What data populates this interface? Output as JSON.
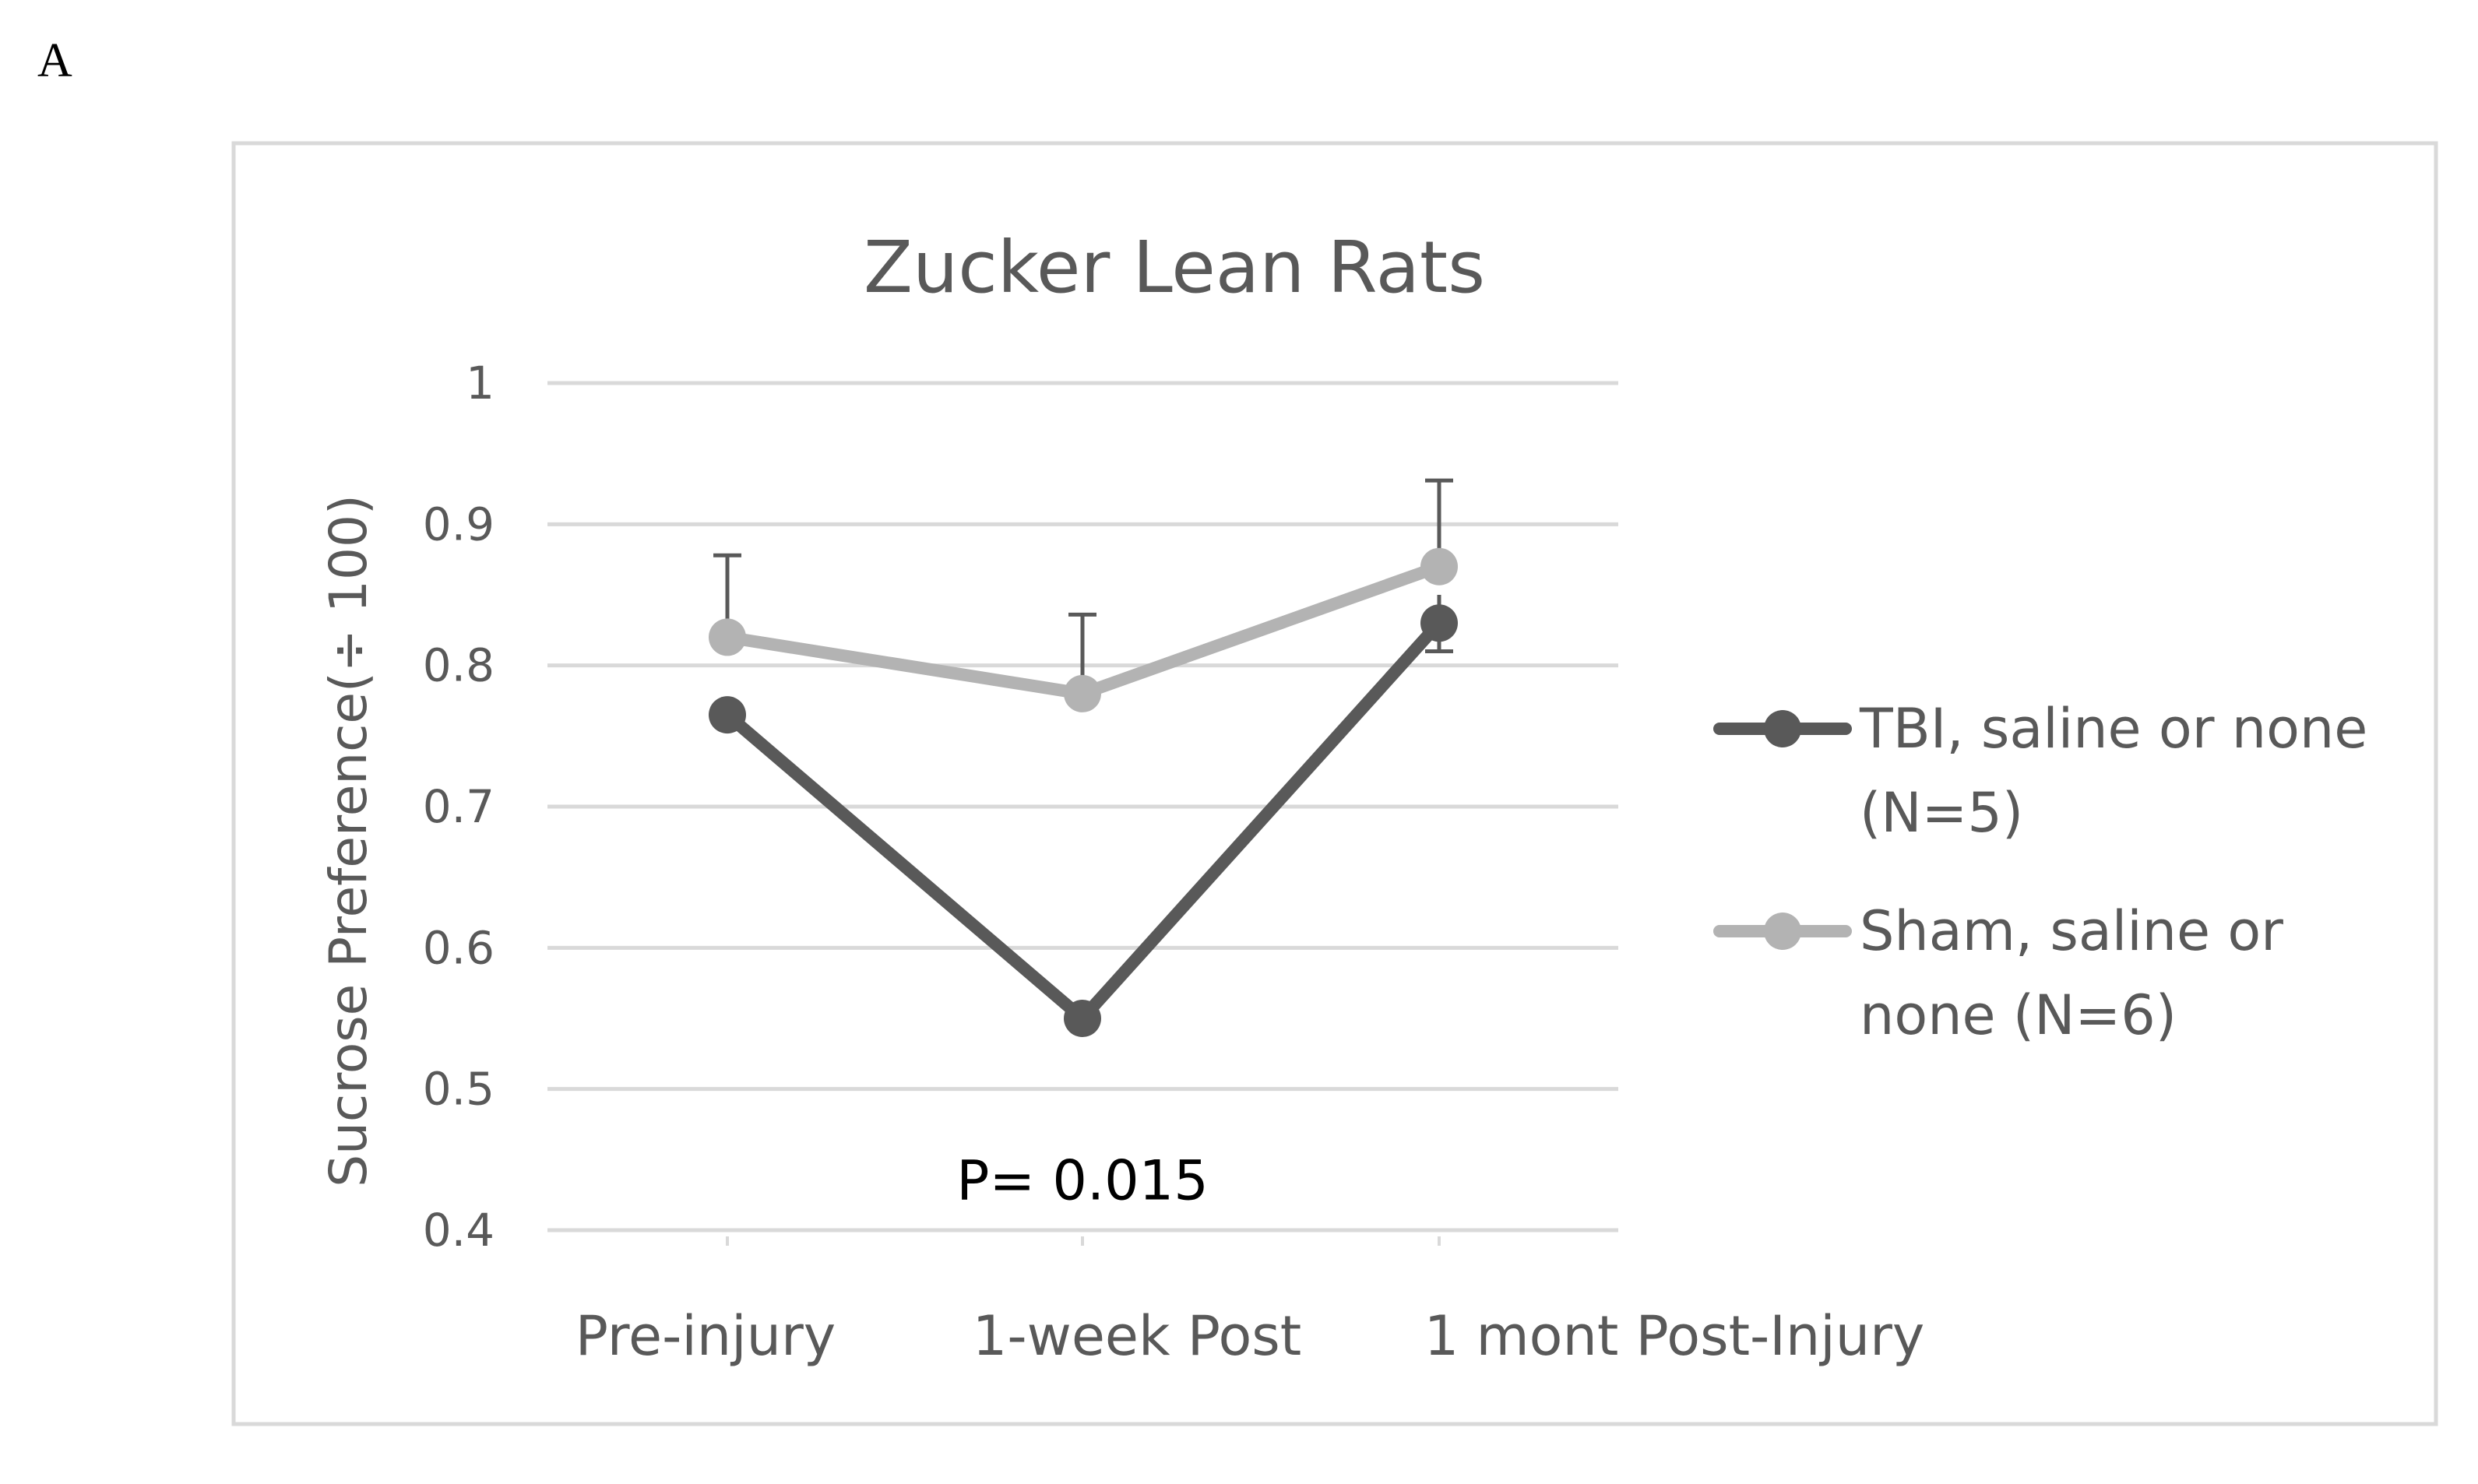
{
  "panel_label": "A",
  "colors": {
    "grid": "#d9d9d9",
    "frame": "#d9d9d9",
    "text": "#595959",
    "tbi": "#595959",
    "sham": "#b3b3b3",
    "error_bar": "#595959"
  },
  "chart_data": {
    "type": "line",
    "title": "Zucker Lean Rats",
    "xlabel": "",
    "ylabel": "Sucrose Preference(÷ 100)",
    "ylim": [
      0.4,
      1.0
    ],
    "yticks": [
      0.4,
      0.5,
      0.6,
      0.7,
      0.8,
      0.9,
      1.0
    ],
    "ytick_labels": [
      "0.4",
      "0.5",
      "0.6",
      "0.7",
      "0.8",
      "0.9",
      "1"
    ],
    "grid": true,
    "legend_position": "right",
    "categories": [
      "Pre-injury",
      "1-week Post",
      "1 mont Post-Injury"
    ],
    "series": [
      {
        "name": "TBI, saline or none (N=5)",
        "legend_lines": [
          "TBI, saline or none",
          "(N=5)"
        ],
        "values": [
          0.765,
          0.55,
          0.83
        ],
        "error": [
          null,
          null,
          0.02
        ]
      },
      {
        "name": "Sham, saline or none (N=6)",
        "legend_lines": [
          "Sham, saline or",
          "none (N=6)"
        ],
        "values": [
          0.82,
          0.78,
          0.87
        ],
        "error": [
          0.058,
          0.056,
          0.061
        ]
      }
    ],
    "annotations": [
      {
        "text": "P= 0.015",
        "category": 1,
        "y": 0.435
      }
    ]
  }
}
